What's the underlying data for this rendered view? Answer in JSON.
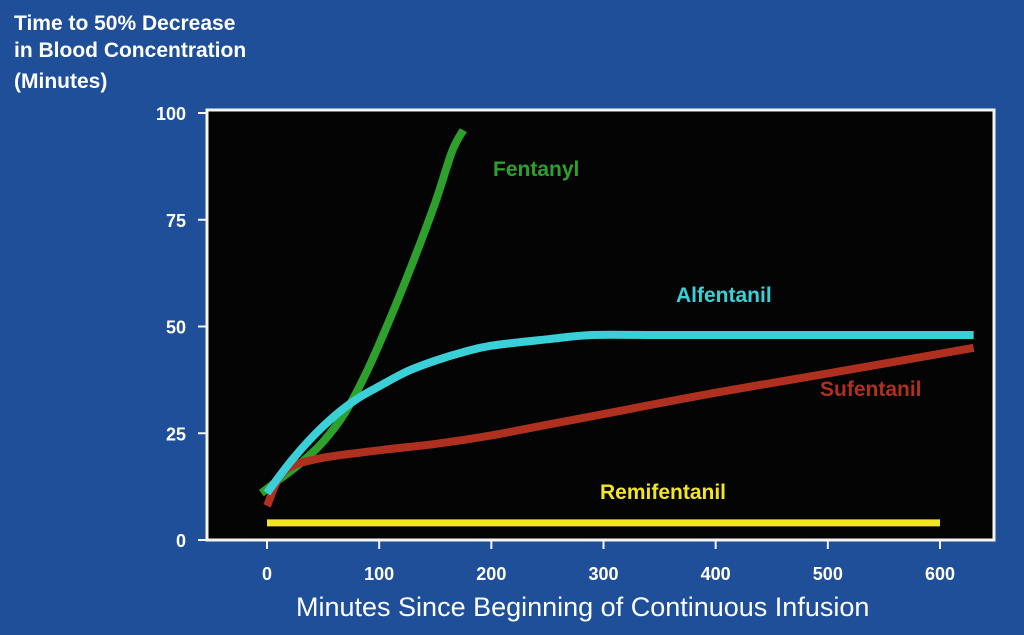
{
  "chart_data": {
    "type": "line",
    "ylabel": [
      "Time to 50% Decrease",
      "in Blood Concentration",
      "(Minutes)"
    ],
    "xlabel": "Minutes Since Beginning of Continuous Infusion",
    "xlim": [
      0,
      640
    ],
    "ylim": [
      0,
      100
    ],
    "x_ticks": [
      0,
      100,
      200,
      300,
      400,
      500,
      600
    ],
    "y_ticks": [
      0,
      25,
      50,
      75,
      100
    ],
    "grid": false,
    "series": [
      {
        "name": "Fentanyl",
        "color": "#2ea02c",
        "x": [
          -5,
          10,
          30,
          50,
          70,
          90,
          110,
          130,
          150,
          165,
          175
        ],
        "y": [
          11,
          14,
          18,
          23,
          30,
          40,
          52,
          65,
          79,
          91,
          96
        ]
      },
      {
        "name": "Alfentanil",
        "color": "#3ad0d8",
        "x": [
          0,
          20,
          40,
          60,
          80,
          100,
          125,
          150,
          175,
          200,
          250,
          290,
          350,
          450,
          550,
          630
        ],
        "y": [
          11,
          18,
          24,
          29,
          33,
          36,
          39.5,
          42,
          44,
          45.5,
          47,
          48,
          48,
          48,
          48,
          48
        ]
      },
      {
        "name": "Sufentanil",
        "color": "#b03020",
        "x": [
          0,
          15,
          45,
          100,
          150,
          200,
          250,
          300,
          400,
          500,
          630
        ],
        "y": [
          8,
          16,
          19,
          21,
          22.5,
          24.5,
          27,
          29.5,
          34.5,
          39,
          45
        ]
      },
      {
        "name": "Remifentanil",
        "color": "#f2e624",
        "x": [
          0,
          600
        ],
        "y": [
          4,
          4
        ]
      }
    ]
  }
}
